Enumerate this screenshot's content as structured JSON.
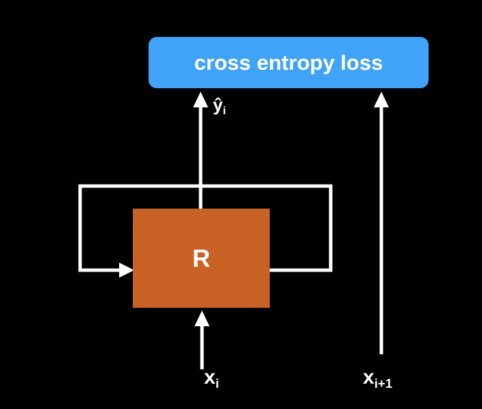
{
  "colors": {
    "background": "#000000",
    "loss_box": "#41a3f7",
    "rnn_box": "#c96225",
    "stroke": "#ffffff",
    "text": "#ffffff"
  },
  "loss_box": {
    "label": "cross entropy loss"
  },
  "rnn_box": {
    "label": "R"
  },
  "output": {
    "base": "ŷ",
    "subscript": "i"
  },
  "input": {
    "base": "x",
    "subscript": "i"
  },
  "target": {
    "base": "x",
    "subscript": "i+1"
  }
}
